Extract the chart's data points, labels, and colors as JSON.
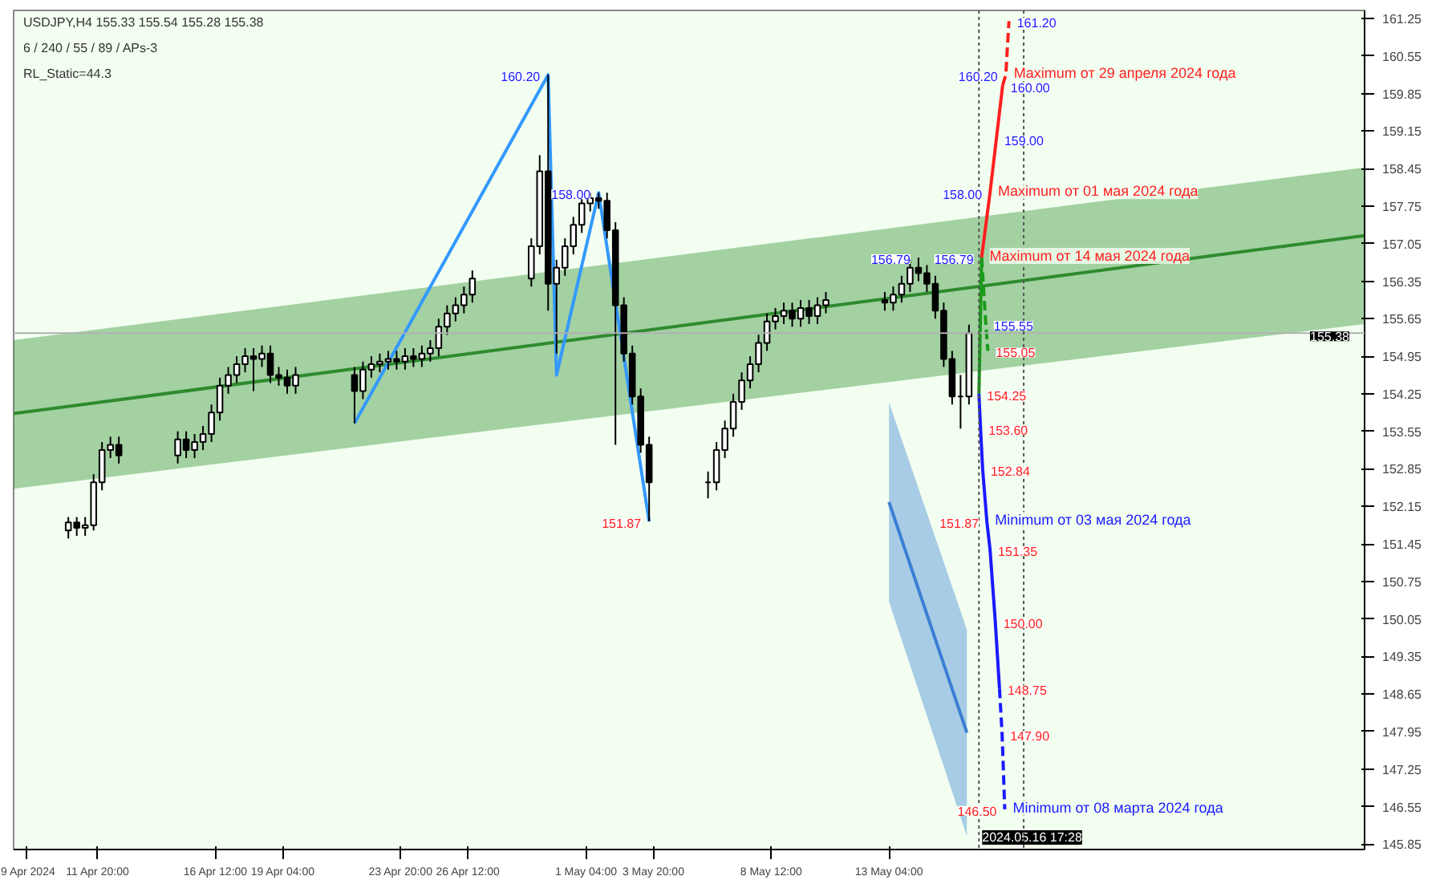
{
  "chart_data": {
    "type": "candlestick",
    "title": "USDJPY,H4 155.33 155.54 155.28 155.38",
    "x": [
      "2024-04-10T16:00",
      "2024-04-11T00:00",
      "2024-04-11T08:00",
      "2024-04-11T16:00",
      "2024-04-12T00:00",
      "2024-04-12T08:00",
      "2024-04-12T16:00",
      "2024-04-15T00:00",
      "2024-04-15T08:00",
      "2024-04-15T16:00",
      "2024-04-16T00:00",
      "2024-04-16T08:00",
      "2024-04-16T16:00",
      "2024-04-17T00:00",
      "2024-04-17T08:00",
      "2024-04-17T16:00",
      "2024-04-18T00:00",
      "2024-04-18T08:00",
      "2024-04-18T16:00",
      "2024-04-19T00:00",
      "2024-04-19T08:00",
      "2024-04-19T16:00",
      "2024-04-22T00:00",
      "2024-04-22T08:00",
      "2024-04-22T16:00",
      "2024-04-23T00:00",
      "2024-04-23T08:00",
      "2024-04-23T16:00",
      "2024-04-24T00:00",
      "2024-04-24T08:00",
      "2024-04-24T16:00",
      "2024-04-25T00:00",
      "2024-04-25T08:00",
      "2024-04-25T16:00",
      "2024-04-26T00:00",
      "2024-04-26T08:00",
      "2024-04-26T16:00",
      "2024-04-29T00:00",
      "2024-04-29T08:00",
      "2024-04-29T16:00",
      "2024-04-30T00:00",
      "2024-04-30T08:00",
      "2024-04-30T16:00",
      "2024-05-01T00:00",
      "2024-05-01T08:00",
      "2024-05-01T16:00",
      "2024-05-02T00:00",
      "2024-05-02T08:00",
      "2024-05-02T16:00",
      "2024-05-03T00:00",
      "2024-05-03T08:00",
      "2024-05-03T16:00",
      "2024-05-06T00:00",
      "2024-05-06T08:00",
      "2024-05-06T16:00",
      "2024-05-07T00:00",
      "2024-05-07T08:00",
      "2024-05-07T16:00",
      "2024-05-08T00:00",
      "2024-05-08T08:00",
      "2024-05-08T16:00",
      "2024-05-09T00:00",
      "2024-05-09T08:00",
      "2024-05-09T16:00",
      "2024-05-10T00:00",
      "2024-05-10T08:00",
      "2024-05-10T16:00",
      "2024-05-13T00:00",
      "2024-05-13T08:00",
      "2024-05-13T16:00",
      "2024-05-14T00:00",
      "2024-05-14T08:00",
      "2024-05-14T16:00",
      "2024-05-15T00:00",
      "2024-05-15T08:00",
      "2024-05-15T16:00",
      "2024-05-16T00:00",
      "2024-05-16T08:00"
    ],
    "ohlc": [
      [
        151.7,
        151.95,
        151.55,
        151.85
      ],
      [
        151.85,
        151.95,
        151.6,
        151.75
      ],
      [
        151.75,
        151.95,
        151.6,
        151.8
      ],
      [
        151.8,
        152.75,
        151.7,
        152.6
      ],
      [
        152.6,
        153.35,
        152.45,
        153.2
      ],
      [
        153.2,
        153.45,
        153.05,
        153.3
      ],
      [
        153.3,
        153.45,
        152.95,
        153.1
      ],
      [
        153.1,
        153.55,
        152.95,
        153.4
      ],
      [
        153.4,
        153.55,
        153.05,
        153.2
      ],
      [
        153.2,
        153.5,
        153.05,
        153.35
      ],
      [
        153.35,
        153.65,
        153.2,
        153.5
      ],
      [
        153.5,
        154.05,
        153.35,
        153.9
      ],
      [
        153.9,
        154.55,
        153.75,
        154.4
      ],
      [
        154.4,
        154.75,
        154.25,
        154.6
      ],
      [
        154.6,
        154.95,
        154.45,
        154.8
      ],
      [
        154.8,
        155.1,
        154.65,
        154.95
      ],
      [
        154.95,
        155.1,
        154.3,
        154.9
      ],
      [
        154.9,
        155.15,
        154.75,
        155.0
      ],
      [
        155.0,
        155.15,
        154.45,
        154.6
      ],
      [
        154.6,
        154.75,
        154.4,
        154.55
      ],
      [
        154.55,
        154.7,
        154.25,
        154.4
      ],
      [
        154.4,
        154.75,
        154.25,
        154.6
      ],
      [
        154.6,
        154.75,
        153.7,
        154.3
      ],
      [
        154.3,
        154.85,
        154.15,
        154.7
      ],
      [
        154.7,
        154.95,
        154.55,
        154.8
      ],
      [
        154.8,
        155.0,
        154.65,
        154.85
      ],
      [
        154.85,
        155.05,
        154.7,
        154.9
      ],
      [
        154.9,
        155.05,
        154.7,
        154.85
      ],
      [
        154.85,
        155.1,
        154.7,
        154.95
      ],
      [
        154.95,
        155.1,
        154.75,
        154.9
      ],
      [
        154.9,
        155.15,
        154.75,
        155.0
      ],
      [
        155.0,
        155.25,
        154.85,
        155.1
      ],
      [
        155.1,
        155.65,
        154.95,
        155.5
      ],
      [
        155.5,
        155.9,
        155.35,
        155.75
      ],
      [
        155.75,
        156.05,
        155.6,
        155.9
      ],
      [
        155.9,
        156.25,
        155.75,
        156.1
      ],
      [
        156.1,
        156.55,
        155.95,
        156.4
      ],
      [
        156.4,
        157.15,
        156.25,
        157.0
      ],
      [
        157.0,
        158.7,
        156.85,
        158.4
      ],
      [
        158.4,
        160.2,
        155.8,
        156.3
      ],
      [
        156.3,
        156.75,
        155.0,
        156.6
      ],
      [
        156.6,
        157.15,
        156.45,
        157.0
      ],
      [
        157.0,
        157.55,
        156.85,
        157.4
      ],
      [
        157.4,
        157.95,
        157.25,
        157.8
      ],
      [
        157.8,
        158.0,
        157.65,
        157.9
      ],
      [
        157.9,
        158.0,
        157.7,
        157.85
      ],
      [
        157.85,
        158.0,
        157.15,
        157.3
      ],
      [
        157.3,
        157.45,
        153.3,
        155.9
      ],
      [
        155.9,
        156.05,
        154.85,
        155.0
      ],
      [
        155.0,
        155.15,
        154.05,
        154.2
      ],
      [
        154.2,
        154.35,
        153.15,
        153.3
      ],
      [
        153.3,
        153.45,
        151.87,
        152.6
      ],
      [
        152.6,
        152.8,
        152.3,
        152.6
      ],
      [
        152.6,
        153.35,
        152.45,
        153.2
      ],
      [
        153.2,
        153.75,
        153.05,
        153.6
      ],
      [
        153.6,
        154.25,
        153.45,
        154.1
      ],
      [
        154.1,
        154.65,
        153.95,
        154.5
      ],
      [
        154.5,
        154.95,
        154.35,
        154.8
      ],
      [
        154.8,
        155.35,
        154.65,
        155.2
      ],
      [
        155.2,
        155.75,
        155.05,
        155.6
      ],
      [
        155.6,
        155.85,
        155.45,
        155.7
      ],
      [
        155.7,
        155.95,
        155.55,
        155.8
      ],
      [
        155.8,
        155.95,
        155.5,
        155.65
      ],
      [
        155.65,
        156.0,
        155.5,
        155.85
      ],
      [
        155.85,
        156.0,
        155.55,
        155.7
      ],
      [
        155.7,
        156.05,
        155.55,
        155.9
      ],
      [
        155.9,
        156.15,
        155.75,
        156.0
      ],
      [
        156.0,
        156.15,
        155.8,
        155.95
      ],
      [
        155.95,
        156.25,
        155.8,
        156.1
      ],
      [
        156.1,
        156.45,
        155.95,
        156.3
      ],
      [
        156.3,
        156.75,
        156.15,
        156.6
      ],
      [
        156.6,
        156.79,
        156.35,
        156.5
      ],
      [
        156.5,
        156.65,
        156.15,
        156.3
      ],
      [
        156.3,
        156.45,
        155.65,
        155.8
      ],
      [
        155.8,
        155.95,
        154.75,
        154.9
      ],
      [
        154.9,
        155.05,
        154.05,
        154.2
      ],
      [
        154.2,
        154.6,
        153.6,
        154.2
      ],
      [
        154.2,
        155.54,
        154.05,
        155.38
      ]
    ],
    "series": [
      {
        "type": "line",
        "color": "#2e8b2e",
        "x": [
          "2024-04-08T12:00",
          "2024-06-01T00:00"
        ],
        "values": [
          153.88,
          157.2
        ],
        "lower": [
          152.48,
          155.55
        ],
        "upper": [
          155.25,
          158.47
        ]
      },
      {
        "type": "line",
        "color": "#3a7fd5",
        "x": [
          "2024-05-13T04:00",
          "2024-05-16T06:00"
        ],
        "values": [
          152.23,
          147.93
        ],
        "lower": [
          150.37,
          146.0
        ],
        "upper": [
          154.09,
          149.85
        ]
      },
      {
        "type": "line",
        "color": "#3399ff",
        "x": [
          "2024-04-22T00:00",
          "2024-04-29T16:00",
          "2024-04-30T00:00",
          "2024-05-01T16:00",
          "2024-05-03T16:00"
        ],
        "values": [
          153.7,
          160.2,
          154.6,
          158.0,
          151.87
        ]
      },
      {
        "type": "line",
        "color": "#1a9a1a",
        "x": [
          "2024-05-16T17:28",
          "2024-05-16T20:00"
        ],
        "values": [
          154.25,
          156.79
        ]
      },
      {
        "type": "line",
        "color": "#1a9a1a",
        "line_style": "dashed",
        "x": [
          "2024-05-16T20:00",
          "2024-05-17T00:00",
          "2024-05-17T02:00"
        ],
        "values": [
          156.79,
          155.55,
          155.05
        ]
      },
      {
        "type": "line",
        "color": "#ff2020",
        "x": [
          "2024-05-16T20:00",
          "2024-05-17T04:00",
          "2024-05-17T10:00",
          "2024-05-17T16:00"
        ],
        "values": [
          156.79,
          158.0,
          159.0,
          160.0
        ]
      },
      {
        "type": "line",
        "color": "#ff2020",
        "line_style": "dashed",
        "x": [
          "2024-05-17T16:00",
          "2024-05-17T19:00",
          "2024-05-17T22:00"
        ],
        "values": [
          160.0,
          160.2,
          161.2
        ]
      },
      {
        "type": "line",
        "color": "#1a1aff",
        "x": [
          "2024-05-16T17:28",
          "2024-05-16T19:00",
          "2024-05-16T21:00",
          "2024-05-17T01:00",
          "2024-05-17T04:00",
          "2024-05-17T09:00",
          "2024-05-17T13:00"
        ],
        "values": [
          154.25,
          153.6,
          152.84,
          151.87,
          151.35,
          150.0,
          148.75
        ]
      },
      {
        "type": "line",
        "color": "#1a1aff",
        "line_style": "dashed",
        "x": [
          "2024-05-17T13:00",
          "2024-05-17T15:30",
          "2024-05-17T18:00"
        ],
        "values": [
          148.75,
          147.9,
          146.5
        ]
      }
    ],
    "xlim": [
      "2024-04-08T12:00",
      "2024-06-01T00:00"
    ],
    "ylim": [
      145.75,
      161.4
    ],
    "xticks": [
      {
        "value": "2024-04-09T00:00",
        "label": "9 Apr 2024"
      },
      {
        "value": "2024-04-11T20:00",
        "label": "11 Apr 20:00"
      },
      {
        "value": "2024-04-16T12:00",
        "label": "16 Apr 12:00"
      },
      {
        "value": "2024-04-19T04:00",
        "label": "19 Apr 04:00"
      },
      {
        "value": "2024-04-23T20:00",
        "label": "23 Apr 20:00"
      },
      {
        "value": "2024-04-26T12:00",
        "label": "26 Apr 12:00"
      },
      {
        "value": "2024-05-01T04:00",
        "label": "1 May 04:00"
      },
      {
        "value": "2024-05-03T20:00",
        "label": "3 May 20:00"
      },
      {
        "value": "2024-05-08T12:00",
        "label": "8 May 12:00"
      },
      {
        "value": "2024-05-13T04:00",
        "label": "13 May 04:00"
      }
    ],
    "yticks": [
      145.85,
      146.55,
      147.25,
      147.95,
      148.65,
      149.35,
      150.05,
      150.75,
      151.45,
      152.15,
      152.85,
      153.55,
      154.25,
      154.95,
      155.65,
      156.35,
      157.05,
      157.75,
      158.45,
      159.15,
      159.85,
      160.55,
      161.25
    ],
    "ref_lines": [
      {
        "axis": "y",
        "value": 155.38,
        "label": "155.38",
        "color": "#b0b0b0"
      },
      {
        "axis": "x",
        "value": "2024-05-16T17:28",
        "label": "2024.05.16 17:28",
        "color": "#555555",
        "line_style": "dotted"
      },
      {
        "axis": "x",
        "value": "2024-05-18T12:00",
        "color": "#555555",
        "line_style": "dotted"
      }
    ],
    "annotations": [
      "6 / 240 / 55 / 89 / APs-3",
      "RL_Static=44.3",
      {
        "text": "160.20",
        "x": "2024-04-29T16:00",
        "y": 160.2
      },
      {
        "text": "158.00",
        "x": "2024-05-01T16:00",
        "y": 158.0
      },
      {
        "text": "156.79",
        "x": "2024-05-14T08:00",
        "y": 156.79
      },
      {
        "text": "151.87",
        "x": "2024-05-03T16:00",
        "y": 151.87
      },
      {
        "text": "161.20",
        "x": "2024-05-17T22:00",
        "y": 161.2
      },
      {
        "text": "160.20",
        "x": "2024-05-17T19:00",
        "y": 160.2
      },
      {
        "text": "160.00",
        "x": "2024-05-17T16:00",
        "y": 160.0
      },
      {
        "text": "159.00",
        "x": "2024-05-17T10:00",
        "y": 159.0
      },
      {
        "text": "158.00",
        "x": "2024-05-17T04:00",
        "y": 158.0
      },
      {
        "text": "156.79",
        "x": "2024-05-16T20:00",
        "y": 156.79
      },
      {
        "text": "155.55",
        "x": "2024-05-17T00:00",
        "y": 155.55
      },
      {
        "text": "155.05",
        "x": "2024-05-17T02:00",
        "y": 155.05
      },
      {
        "text": "154.25",
        "x": "2024-05-16T17:28",
        "y": 154.25
      },
      {
        "text": "153.60",
        "x": "2024-05-16T19:00",
        "y": 153.6
      },
      {
        "text": "152.84",
        "x": "2024-05-16T21:00",
        "y": 152.84
      },
      {
        "text": "151.87",
        "x": "2024-05-17T01:00",
        "y": 151.87
      },
      {
        "text": "151.35",
        "x": "2024-05-17T04:00",
        "y": 151.35
      },
      {
        "text": "150.00",
        "x": "2024-05-17T09:00",
        "y": 150.0
      },
      {
        "text": "148.75",
        "x": "2024-05-17T13:00",
        "y": 148.75
      },
      {
        "text": "147.90",
        "x": "2024-05-17T15:30",
        "y": 147.9
      },
      {
        "text": "146.50",
        "x": "2024-05-17T18:00",
        "y": 146.5
      },
      {
        "text": "Maximum от 29 апреля 2024 года",
        "x": "2024-05-17T19:00",
        "y": 160.2
      },
      {
        "text": "Maximum от 01 мая 2024 года",
        "x": "2024-05-17T04:00",
        "y": 158.0
      },
      {
        "text": "Maximum от 14 мая 2024 года",
        "x": "2024-05-16T20:00",
        "y": 156.79
      },
      {
        "text": "Minimum от 03 мая  2024 года",
        "x": "2024-05-17T01:00",
        "y": 151.87
      },
      {
        "text": "Minimum от 08 марта 2024 года",
        "x": "2024-05-17T18:00",
        "y": 146.5
      }
    ],
    "grid": false
  }
}
